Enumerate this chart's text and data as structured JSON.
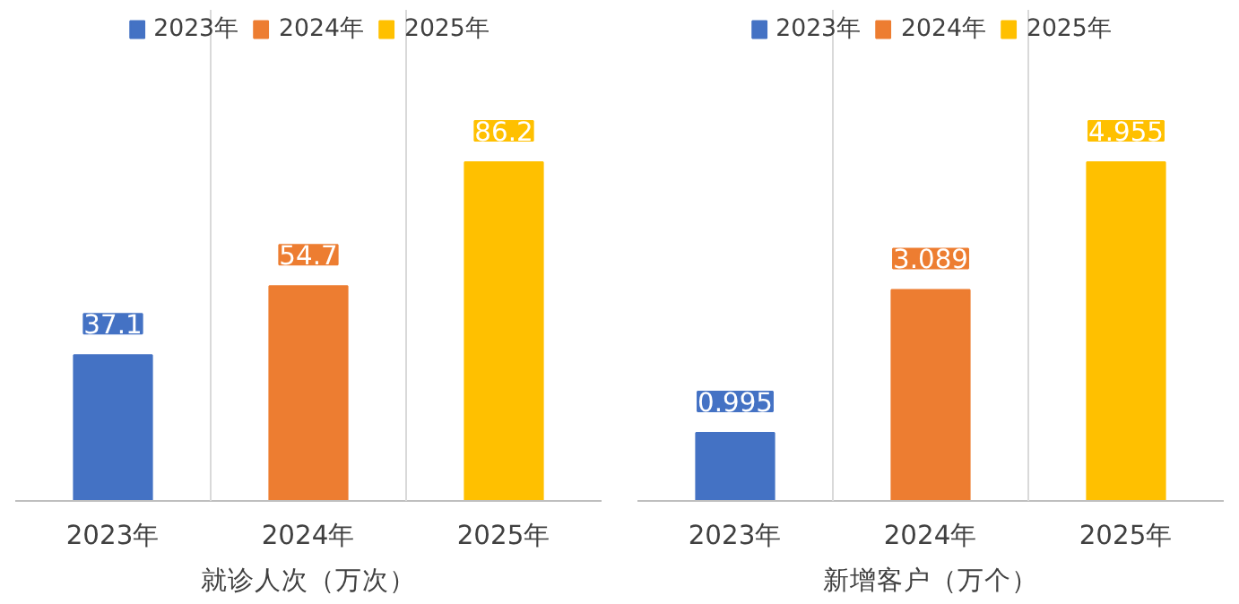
{
  "chart_data": [
    {
      "type": "bar",
      "xlabel": "就诊人次（万次）",
      "categories": [
        "2023年",
        "2024年",
        "2025年"
      ],
      "data_labels": true,
      "legend": "top",
      "grid": "x",
      "series": [
        {
          "name": "2023年",
          "color": "#4472c4",
          "values": [
            37.1,
            null,
            null
          ]
        },
        {
          "name": "2024年",
          "color": "#ed7d31",
          "values": [
            null,
            54.7,
            null
          ]
        },
        {
          "name": "2025年",
          "color": "#ffc000",
          "values": [
            null,
            null,
            86.2
          ]
        }
      ]
    },
    {
      "type": "bar",
      "xlabel": "新增客户（万个）",
      "categories": [
        "2023年",
        "2024年",
        "2025年"
      ],
      "data_labels": true,
      "legend": "top",
      "grid": "x",
      "series": [
        {
          "name": "2023年",
          "color": "#4472c4",
          "values": [
            0.995,
            null,
            null
          ]
        },
        {
          "name": "2024年",
          "color": "#ed7d31",
          "values": [
            null,
            3.089,
            null
          ]
        },
        {
          "name": "2025年",
          "color": "#ffc000",
          "values": [
            null,
            null,
            4.955
          ]
        }
      ]
    }
  ]
}
